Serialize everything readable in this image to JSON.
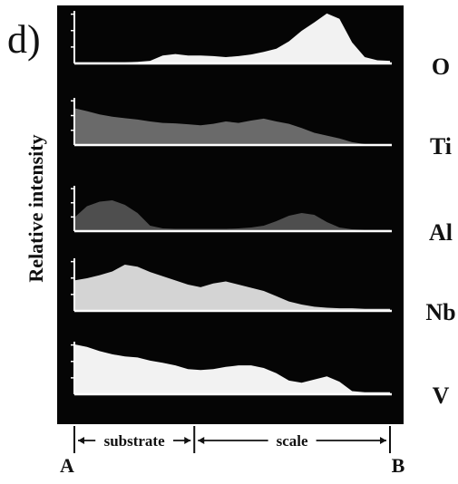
{
  "panel_label": "d)",
  "chart_data": {
    "type": "area",
    "ylabel": "Relative intensity",
    "x_start_label": "A",
    "x_end_label": "B",
    "regions": [
      {
        "label": "substrate",
        "x_from": 0.0,
        "x_to": 0.38
      },
      {
        "label": "scale",
        "x_from": 0.38,
        "x_to": 1.0
      }
    ],
    "x": [
      0,
      0.04,
      0.08,
      0.12,
      0.16,
      0.2,
      0.24,
      0.28,
      0.32,
      0.36,
      0.4,
      0.44,
      0.48,
      0.52,
      0.56,
      0.6,
      0.64,
      0.68,
      0.72,
      0.76,
      0.8,
      0.84,
      0.88,
      0.92,
      0.96,
      1.0
    ],
    "series": [
      {
        "name": "O",
        "color": "#f2f2f2",
        "values": [
          0.02,
          0.02,
          0.02,
          0.02,
          0.02,
          0.03,
          0.05,
          0.15,
          0.18,
          0.15,
          0.15,
          0.14,
          0.12,
          0.14,
          0.17,
          0.22,
          0.28,
          0.42,
          0.62,
          0.78,
          0.95,
          0.85,
          0.4,
          0.12,
          0.06,
          0.05
        ]
      },
      {
        "name": "Ti",
        "color": "#6a6a6a",
        "values": [
          0.78,
          0.72,
          0.65,
          0.6,
          0.57,
          0.54,
          0.5,
          0.47,
          0.46,
          0.44,
          0.42,
          0.45,
          0.5,
          0.47,
          0.52,
          0.56,
          0.5,
          0.45,
          0.36,
          0.26,
          0.2,
          0.14,
          0.06,
          0.02,
          0.02,
          0.02
        ]
      },
      {
        "name": "Al",
        "color": "#4e4e4e",
        "values": [
          0.3,
          0.55,
          0.65,
          0.68,
          0.58,
          0.4,
          0.12,
          0.06,
          0.05,
          0.05,
          0.05,
          0.05,
          0.05,
          0.06,
          0.08,
          0.12,
          0.22,
          0.34,
          0.4,
          0.36,
          0.2,
          0.08,
          0.04,
          0.03,
          0.03,
          0.03
        ]
      },
      {
        "name": "Nb",
        "color": "#d4d4d4",
        "values": [
          0.58,
          0.62,
          0.68,
          0.75,
          0.88,
          0.84,
          0.74,
          0.66,
          0.58,
          0.5,
          0.45,
          0.52,
          0.56,
          0.5,
          0.44,
          0.38,
          0.28,
          0.18,
          0.12,
          0.08,
          0.06,
          0.05,
          0.05,
          0.04,
          0.04,
          0.04
        ]
      },
      {
        "name": "V",
        "color": "#f2f2f2",
        "values": [
          0.95,
          0.9,
          0.82,
          0.76,
          0.72,
          0.7,
          0.64,
          0.6,
          0.55,
          0.48,
          0.46,
          0.48,
          0.52,
          0.55,
          0.55,
          0.5,
          0.4,
          0.26,
          0.22,
          0.28,
          0.34,
          0.24,
          0.06,
          0.04,
          0.04,
          0.04
        ]
      }
    ],
    "grid": false,
    "legend": "none"
  }
}
